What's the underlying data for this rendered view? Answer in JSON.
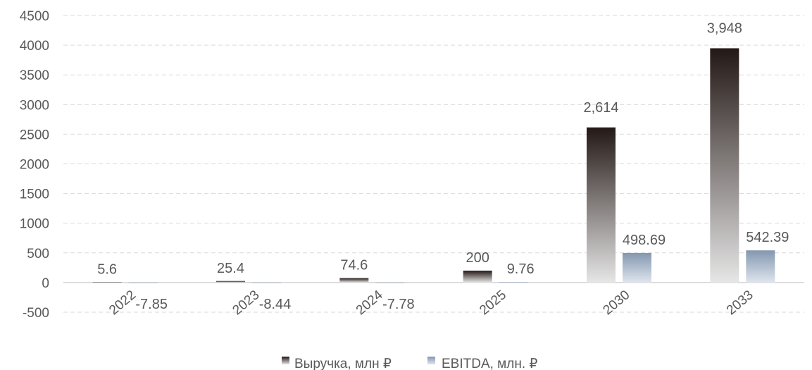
{
  "chart_data": {
    "type": "bar",
    "categories": [
      "2022",
      "2023",
      "2024",
      "2025",
      "2030",
      "2033"
    ],
    "series": [
      {
        "name": "Выручка, млн ₽",
        "values": [
          5.6,
          25.4,
          74.6,
          200,
          2614,
          3948
        ],
        "labels": [
          "5.6",
          "25.4",
          "74.6",
          "200",
          "2,614",
          "3,948"
        ],
        "color_top": "#231815",
        "color_bottom": "#e6e6e6"
      },
      {
        "name": "EBITDA, млн. ₽",
        "values": [
          -7.85,
          -8.44,
          -7.78,
          9.76,
          498.69,
          542.39
        ],
        "labels": [
          "-7.85",
          "-8.44",
          "-7.78",
          "9.76",
          "498.69",
          "542.39"
        ],
        "color_top": "#8497b0",
        "color_bottom": "#dfe5ee"
      }
    ],
    "y_ticks": [
      "-500",
      "0",
      "500",
      "1000",
      "1500",
      "2000",
      "2500",
      "3000",
      "3500",
      "4000",
      "4500"
    ],
    "ylim": [
      -500,
      4500
    ],
    "grid": true,
    "grid_style": "dashed",
    "legend_position": "bottom-center",
    "title": "",
    "xlabel": "",
    "ylabel": ""
  }
}
